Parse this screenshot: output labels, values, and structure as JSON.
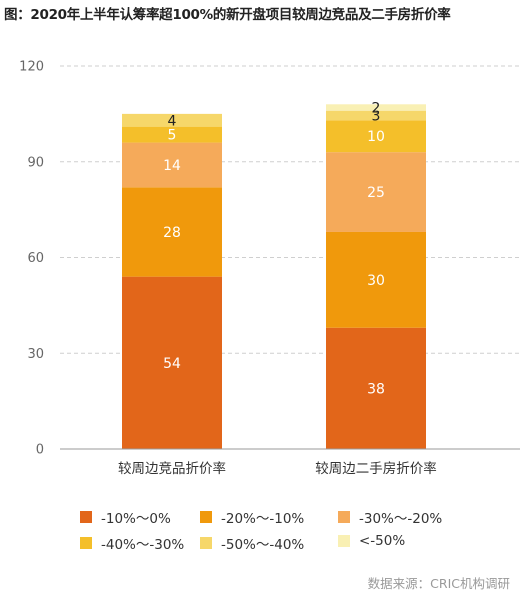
{
  "title": "图：2020年上半年认筹率超100%的新开盘项目较周边竞品及二手房折价率",
  "source": "数据来源：CRIC机构调研",
  "chart_data": {
    "type": "bar",
    "stacked": true,
    "categories": [
      "较周边竞品折价率",
      "较周边二手房折价率"
    ],
    "ylim": [
      0,
      120
    ],
    "yticks": [
      0,
      30,
      60,
      90,
      120
    ],
    "grid": true,
    "legend_position": "bottom",
    "series": [
      {
        "name": "-10%～0%",
        "color": "#e2661a",
        "label_color": "#ffffff",
        "values": [
          54,
          38
        ]
      },
      {
        "name": "-20%～-10%",
        "color": "#f0990c",
        "label_color": "#ffffff",
        "values": [
          28,
          30
        ]
      },
      {
        "name": "-30%～-20%",
        "color": "#f5aa5a",
        "label_color": "#ffffff",
        "values": [
          14,
          25
        ]
      },
      {
        "name": "-40%～-30%",
        "color": "#f4bf2a",
        "label_color": "#ffffff",
        "values": [
          5,
          10
        ]
      },
      {
        "name": "-50%～-40%",
        "color": "#f6d76a",
        "label_color": "#222222",
        "values": [
          4,
          3
        ]
      },
      {
        "name": "<-50%",
        "color": "#f9f0b4",
        "label_color": "#222222",
        "values": [
          0,
          2
        ]
      }
    ]
  }
}
